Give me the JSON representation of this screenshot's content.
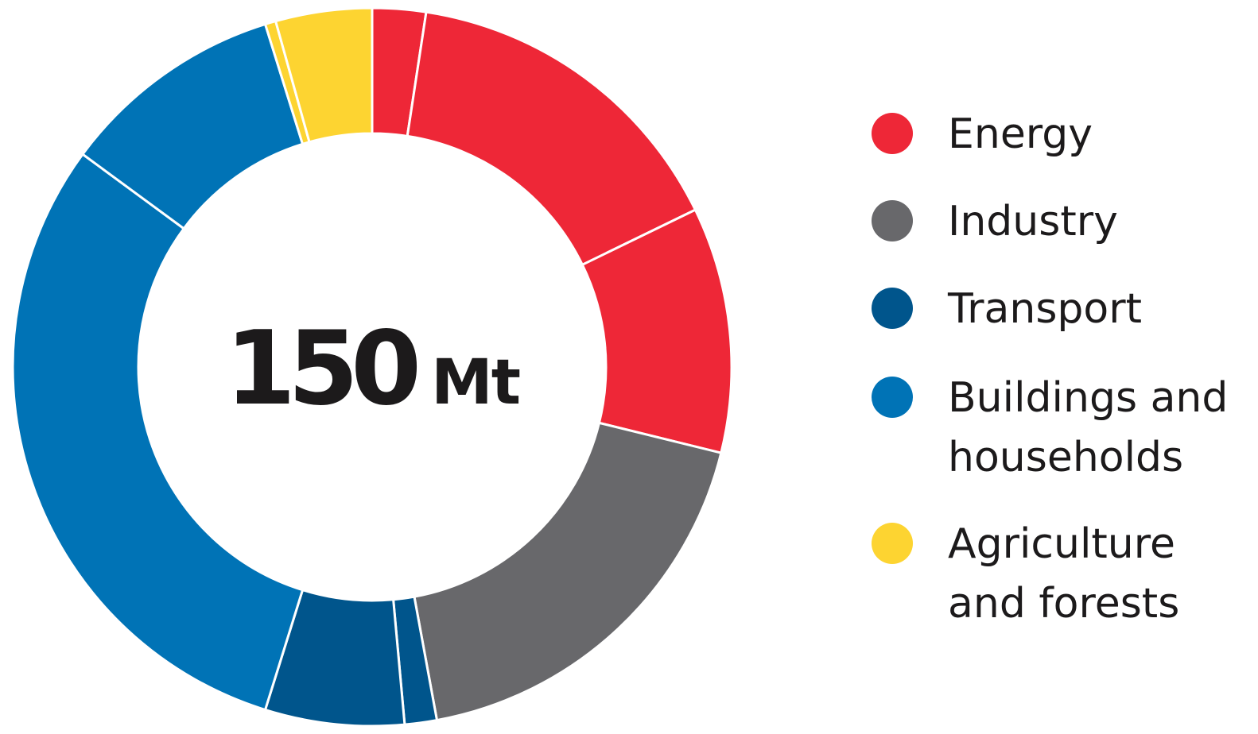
{
  "chart_data": {
    "type": "pie",
    "center_value": "150",
    "center_unit": "Mt",
    "legend_placement": "right",
    "categories": [
      "Energy",
      "Industry",
      "Transport",
      "Buildings and households",
      "Agriculture and forests"
    ],
    "colors": {
      "Energy": "#ee2737",
      "Industry": "#68686b",
      "Transport": "#00558c",
      "Buildings and households": "#0073b6",
      "Agriculture and forests": "#fdd431"
    },
    "slices": [
      {
        "category": "Energy",
        "value": 2.5
      },
      {
        "category": "Energy",
        "value": 16.0
      },
      {
        "category": "Energy",
        "value": 11.5
      },
      {
        "category": "Industry",
        "value": 19.0
      },
      {
        "category": "Transport",
        "value": 1.5
      },
      {
        "category": "Transport",
        "value": 6.5
      },
      {
        "category": "Buildings and households",
        "value": 31.5
      },
      {
        "category": "Buildings and households",
        "value": 10.5
      },
      {
        "category": "Agriculture and forests",
        "value": 0.5
      },
      {
        "category": "Agriculture and forests",
        "value": 4.5
      }
    ]
  },
  "legend": {
    "items": [
      {
        "label": "Energy",
        "color": "#ee2737"
      },
      {
        "label": "Industry",
        "color": "#68686b"
      },
      {
        "label": "Transport",
        "color": "#00558c"
      },
      {
        "label": "Buildings and households",
        "color": "#0073b6"
      },
      {
        "label": "Agriculture and forests",
        "color": "#fdd431"
      }
    ]
  }
}
